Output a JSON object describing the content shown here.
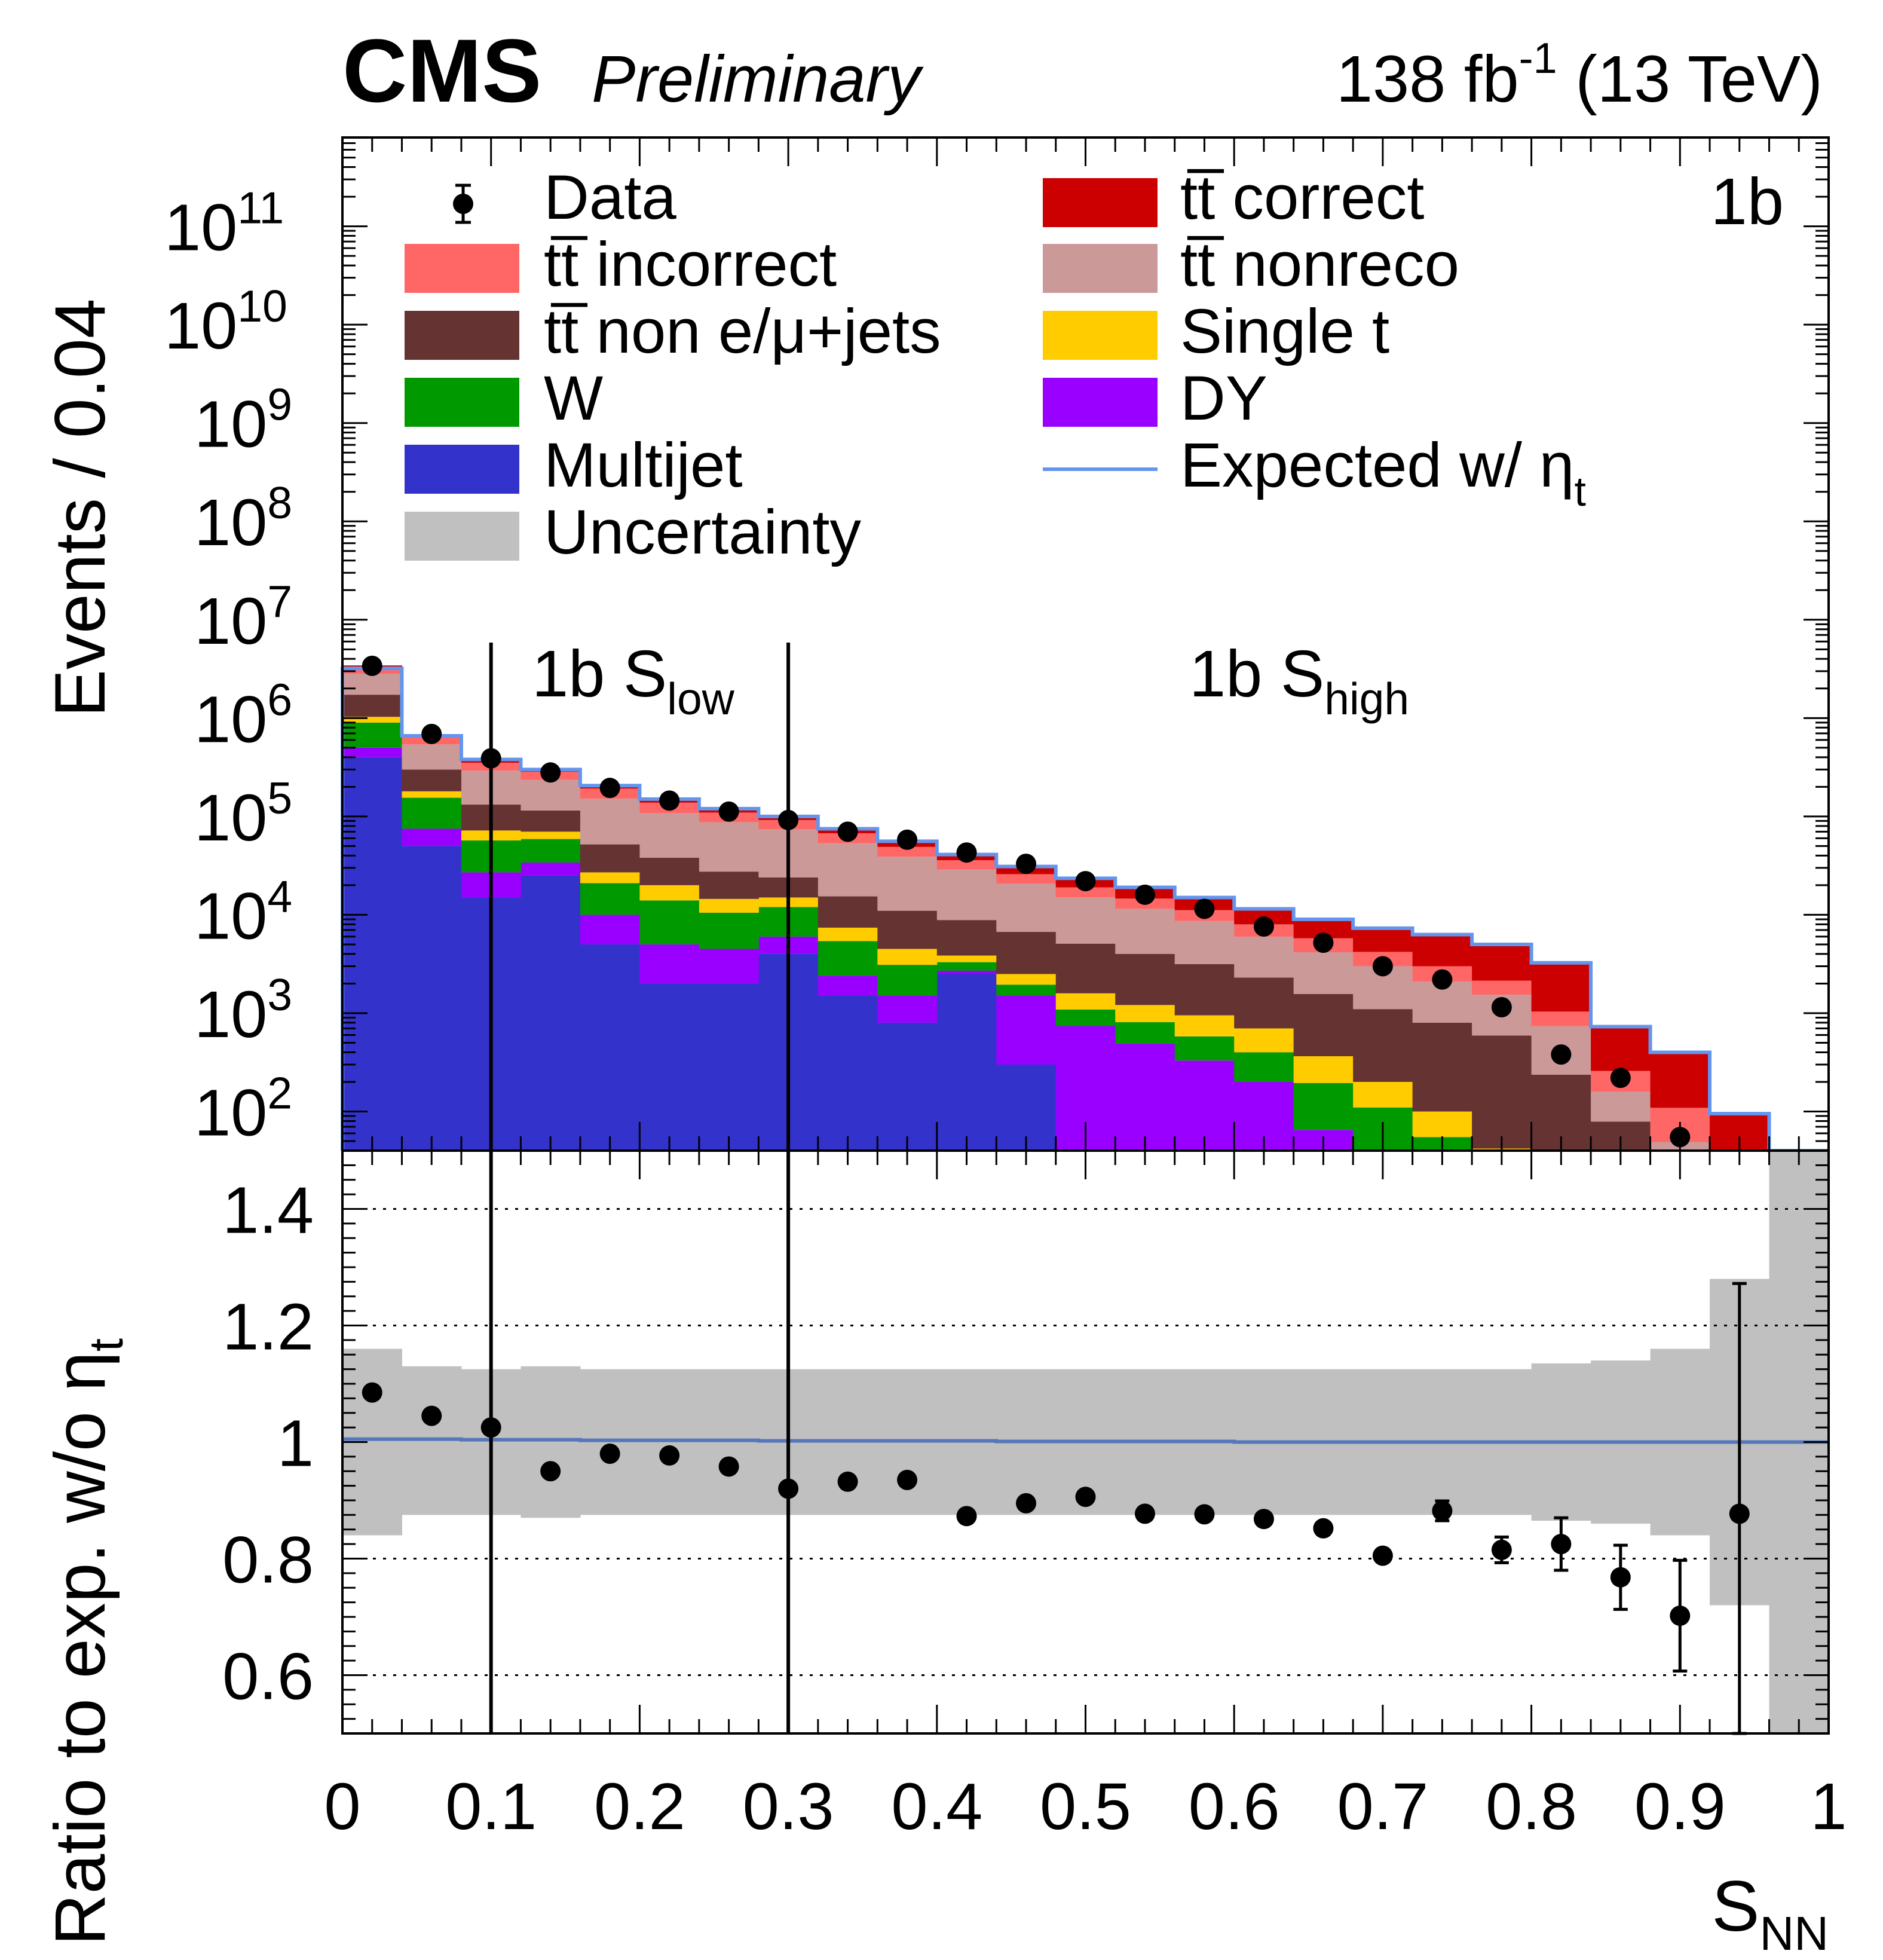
{
  "header": {
    "experiment": "CMS",
    "status": "Preliminary",
    "lumi": "138 fb",
    "lumi_exp": "-1",
    "energy": " (13 TeV)"
  },
  "category": "1b",
  "regions": {
    "low_main": "1b S",
    "low_sub": "low",
    "high_main": "1b S",
    "high_sub": "high",
    "boundaries": [
      0.1,
      0.3
    ]
  },
  "legend": {
    "data": "Data",
    "tt_correct": "tt̅ correct",
    "tt_incorrect": "tt̅ incorrect",
    "tt_nonreco": "tt̅ nonreco",
    "tt_non_ljets": "tt̅ non e/μ+jets",
    "single_t": "Single t",
    "w": "W",
    "dy": "DY",
    "multijet": "Multijet",
    "expected_main": "Expected w/ η",
    "expected_sub": "t",
    "uncertainty": "Uncertainty"
  },
  "axes": {
    "top_ylabel": "Events / 0.04",
    "bottom_ylabel_main": "Ratio to exp. w/o η",
    "bottom_ylabel_sub": "t",
    "xlabel_main": "S",
    "xlabel_sub": "NN",
    "x_ticks": [
      "0",
      "0.1",
      "0.2",
      "0.3",
      "0.4",
      "0.5",
      "0.6",
      "0.7",
      "0.8",
      "0.9",
      "1"
    ],
    "top_y_tick_exps": [
      "2",
      "3",
      "4",
      "5",
      "6",
      "7",
      "8",
      "9",
      "10",
      "11"
    ],
    "ratio_ticks": [
      "0.6",
      "0.8",
      "1",
      "1.2",
      "1.4"
    ]
  },
  "colors": {
    "tt_correct": "#cc0000",
    "tt_incorrect": "#ff6666",
    "tt_nonreco": "#cc9999",
    "tt_non_ljets": "#663333",
    "single_t": "#ffcc00",
    "w": "#009900",
    "dy": "#9900ff",
    "multijet": "#3333cc",
    "uncertainty": "#c0c0c0",
    "expected": "#6495ed"
  },
  "chart_data": {
    "type": "bar",
    "stacked": true,
    "bin_width": 0.04,
    "xlim": [
      0,
      1
    ],
    "ylim_log": [
      40,
      800000000000
    ],
    "bin_edges": [
      0,
      0.04,
      0.08,
      0.12,
      0.16,
      0.2,
      0.24,
      0.28,
      0.32,
      0.36,
      0.4,
      0.44,
      0.48,
      0.52,
      0.56,
      0.6,
      0.64,
      0.68,
      0.72,
      0.76,
      0.8,
      0.84,
      0.88,
      0.92,
      0.96,
      1.0
    ],
    "stack_order": [
      "multijet",
      "dy",
      "w",
      "single_t",
      "tt_non_ljets",
      "tt_nonreco",
      "tt_incorrect",
      "tt_correct"
    ],
    "series": [
      {
        "key": "multijet",
        "name": "Multijet",
        "values": [
          400000,
          50000,
          15000,
          25000,
          5000,
          2000,
          2000,
          4000,
          1500,
          800,
          2500,
          300,
          40,
          40,
          30,
          20,
          15,
          10,
          5,
          2,
          1,
          1,
          1,
          0,
          0
        ]
      },
      {
        "key": "dy",
        "name": "DY",
        "values": [
          100000,
          25000,
          12000,
          9000,
          5000,
          3000,
          2500,
          2000,
          900,
          700,
          200,
          1200,
          700,
          450,
          300,
          180,
          50,
          20,
          10,
          5,
          2,
          1,
          1,
          0,
          0
        ]
      },
      {
        "key": "w",
        "name": "W",
        "values": [
          400000,
          80000,
          30000,
          25000,
          11000,
          9000,
          6000,
          6000,
          3000,
          1600,
          600,
          450,
          350,
          320,
          250,
          200,
          130,
          80,
          40,
          15,
          6,
          3,
          1,
          0,
          0
        ]
      },
      {
        "key": "single_t",
        "name": "Single t",
        "values": [
          130000,
          25000,
          15000,
          11000,
          6000,
          6000,
          4000,
          3000,
          2000,
          1400,
          550,
          550,
          500,
          400,
          370,
          300,
          170,
          90,
          45,
          20,
          8,
          4,
          1,
          0,
          0
        ]
      },
      {
        "key": "tt_non_ljets",
        "name": "tt̅ non e/μ+jets",
        "values": [
          700000,
          120000,
          60000,
          45000,
          25000,
          18000,
          13000,
          9000,
          8000,
          6500,
          5000,
          4200,
          3500,
          2800,
          2200,
          1600,
          1200,
          900,
          700,
          550,
          220,
          70,
          20,
          1,
          0
        ]
      },
      {
        "key": "tt_nonreco",
        "name": "tt̅ nonreco",
        "values": [
          1100000,
          240000,
          160000,
          120000,
          100000,
          70000,
          60000,
          50000,
          38000,
          28000,
          20000,
          14000,
          10000,
          7500,
          5500,
          3700,
          2600,
          1900,
          1300,
          950,
          500,
          80,
          25,
          1,
          0
        ]
      },
      {
        "key": "tt_incorrect",
        "name": "tt̅ incorrect",
        "values": [
          500000,
          100000,
          60000,
          50000,
          40000,
          30000,
          22000,
          18000,
          14000,
          10000,
          7000,
          5200,
          3900,
          3100,
          2500,
          2000,
          1600,
          1200,
          900,
          600,
          300,
          100,
          60,
          3,
          0
        ]
      },
      {
        "key": "tt_correct",
        "name": "tt̅ correct",
        "values": [
          100000,
          25000,
          20000,
          17000,
          15000,
          12000,
          10000,
          9000,
          8000,
          7000,
          5000,
          4700,
          4400,
          4600,
          4000,
          3500,
          3200,
          3100,
          3200,
          3000,
          2100,
          470,
          300,
          90,
          0
        ]
      }
    ],
    "expected_total": [
      3200000,
      660000,
      380000,
      300000,
      206000,
      150000,
      120000,
      100000,
      75000,
      56000,
      41000,
      31000,
      23500,
      19000,
      15000,
      11500,
      9000,
      7300,
      6300,
      5000,
      3250,
      730,
      400,
      95,
      0
    ],
    "data": {
      "name": "Data",
      "x": [
        0.02,
        0.06,
        0.1,
        0.14,
        0.18,
        0.22,
        0.26,
        0.3,
        0.34,
        0.38,
        0.42,
        0.46,
        0.5,
        0.54,
        0.58,
        0.62,
        0.66,
        0.7,
        0.74,
        0.78,
        0.82,
        0.86,
        0.9
      ],
      "y": [
        3400000,
        690000,
        390000,
        280000,
        195000,
        145000,
        112000,
        92000,
        70000,
        58000,
        43000,
        33000,
        22000,
        16000,
        11500,
        7600,
        5200,
        3000,
        2200,
        1150,
        380,
        220,
        55
      ]
    },
    "ratio": {
      "ylim": [
        0.5,
        1.5
      ],
      "gridlines": [
        0.6,
        0.8,
        1.2,
        1.4
      ],
      "x": [
        0.02,
        0.06,
        0.1,
        0.14,
        0.18,
        0.22,
        0.26,
        0.3,
        0.34,
        0.38,
        0.42,
        0.46,
        0.5,
        0.54,
        0.58,
        0.62,
        0.66,
        0.7,
        0.74,
        0.78,
        0.82,
        0.86,
        0.9,
        0.94
      ],
      "y": [
        1.085,
        1.045,
        1.025,
        0.95,
        0.98,
        0.977,
        0.958,
        0.92,
        0.932,
        0.935,
        0.873,
        0.895,
        0.906,
        0.877,
        0.876,
        0.868,
        0.852,
        0.805,
        0.882,
        0.815,
        0.825,
        0.768,
        0.702,
        0.877
      ],
      "err": [
        0,
        0,
        0,
        0,
        0,
        0,
        0,
        0,
        0,
        0,
        0,
        0,
        0,
        0,
        0,
        0,
        0,
        0,
        0.017,
        0.022,
        0.045,
        0.055,
        0.095,
        0.395
      ],
      "expected_with_eta": [
        1.005,
        1.005,
        1.004,
        1.004,
        1.003,
        1.003,
        1.003,
        1.002,
        1.002,
        1.002,
        1.002,
        1.001,
        1.001,
        1.001,
        1.001,
        1.0,
        1.0,
        1.0,
        1.0,
        1.0,
        1.0,
        1.0,
        1.0,
        1.0,
        1.0
      ],
      "uncertainty_band": [
        [
          0.84,
          1.16
        ],
        [
          0.875,
          1.13
        ],
        [
          0.875,
          1.125
        ],
        [
          0.87,
          1.13
        ],
        [
          0.875,
          1.125
        ],
        [
          0.875,
          1.125
        ],
        [
          0.875,
          1.125
        ],
        [
          0.875,
          1.125
        ],
        [
          0.875,
          1.125
        ],
        [
          0.875,
          1.125
        ],
        [
          0.875,
          1.125
        ],
        [
          0.875,
          1.125
        ],
        [
          0.875,
          1.125
        ],
        [
          0.875,
          1.125
        ],
        [
          0.875,
          1.125
        ],
        [
          0.875,
          1.125
        ],
        [
          0.875,
          1.125
        ],
        [
          0.875,
          1.125
        ],
        [
          0.875,
          1.125
        ],
        [
          0.875,
          1.125
        ],
        [
          0.865,
          1.135
        ],
        [
          0.86,
          1.14
        ],
        [
          0.84,
          1.16
        ],
        [
          0.72,
          1.28
        ],
        [
          0.5,
          1.5
        ]
      ]
    }
  }
}
